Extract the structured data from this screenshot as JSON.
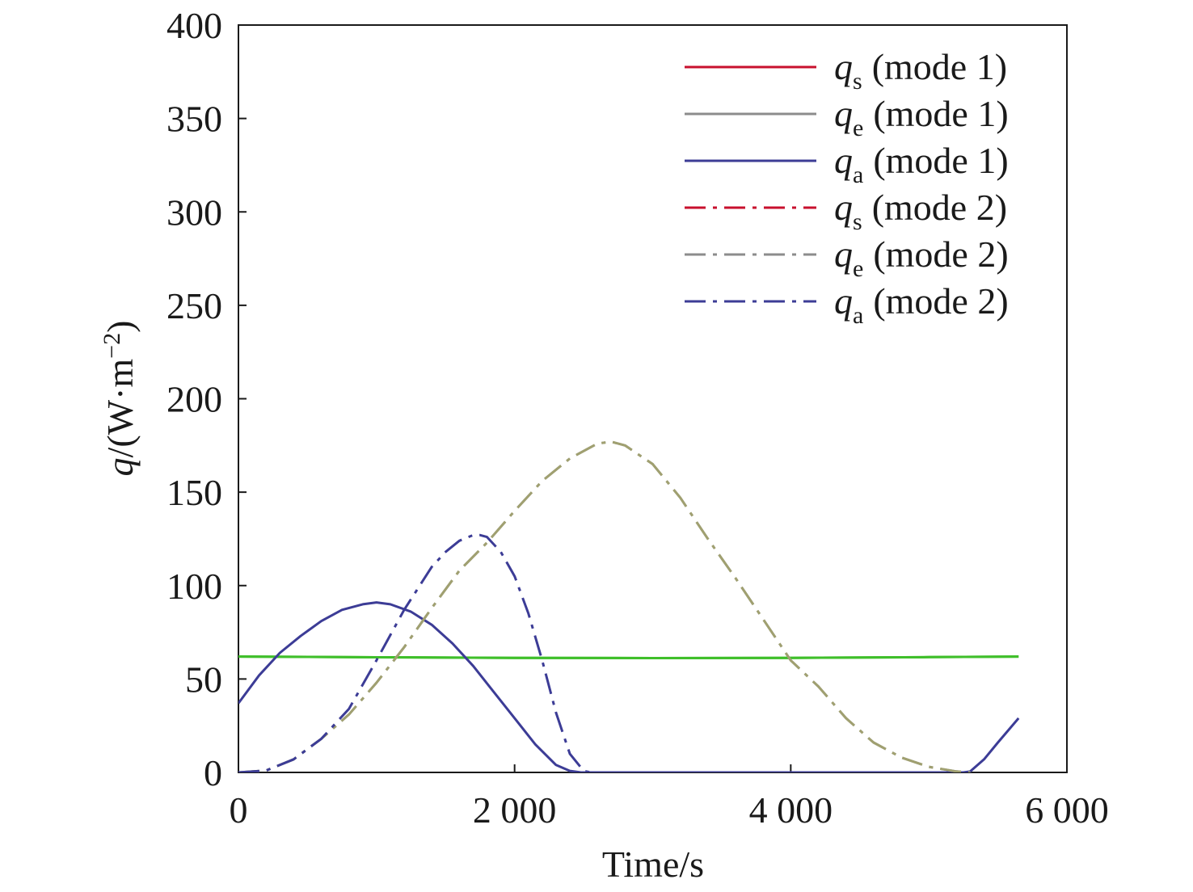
{
  "chart_data": {
    "type": "line",
    "xlabel": "Time/s",
    "ylabel_var": "q",
    "ylabel_unit_open": "/(W·m",
    "ylabel_unit_sup": "−2",
    "ylabel_unit_close": ")",
    "xlim": [
      0,
      6000
    ],
    "ylim": [
      0,
      400
    ],
    "xticks": [
      0,
      2000,
      4000,
      6000
    ],
    "xtick_labels": [
      "0",
      "2 000",
      "4 000",
      "6 000"
    ],
    "yticks": [
      0,
      50,
      100,
      150,
      200,
      250,
      300,
      350,
      400
    ],
    "ytick_labels": [
      "0",
      "50",
      "100",
      "150",
      "200",
      "250",
      "300",
      "350",
      "400"
    ],
    "grid": false,
    "legend_position": "top-right",
    "series": [
      {
        "name": "(mode 1)",
        "symbol": "q",
        "subscript": "s",
        "color": "#c8102e",
        "style": "solid",
        "x": [
          0,
          1000,
          2000,
          3000,
          4000,
          5000,
          5650
        ],
        "y": [
          62,
          61.6,
          61.3,
          61.2,
          61.3,
          61.7,
          62
        ]
      },
      {
        "name": "(mode 1)",
        "symbol": "q",
        "subscript": "e",
        "color": "#8c8c8c",
        "style": "solid",
        "x": [
          0,
          1000,
          2000,
          3000,
          4000,
          5000,
          5650
        ],
        "y": [
          62,
          61.6,
          61.3,
          61.2,
          61.3,
          61.7,
          62
        ]
      },
      {
        "name": "(mode 1)",
        "symbol": "q",
        "subscript": "a",
        "color": "#3c3c96",
        "style": "solid",
        "x": [
          0,
          150,
          300,
          450,
          600,
          750,
          900,
          1000,
          1100,
          1250,
          1400,
          1550,
          1700,
          1850,
          2000,
          2150,
          2300,
          2400,
          2480,
          2550,
          5250,
          5300,
          5400,
          5500,
          5650
        ],
        "y": [
          37,
          52,
          64,
          73,
          81,
          87,
          90,
          91,
          90,
          86,
          79,
          69,
          57,
          43,
          29,
          15,
          4,
          0.8,
          0,
          0,
          0,
          0.5,
          7,
          16,
          29
        ]
      },
      {
        "name": "(mode 2)",
        "symbol": "q",
        "subscript": "s",
        "color": "#c8102e",
        "style": "dashdot",
        "x": [
          0,
          200,
          400,
          600,
          800,
          1000,
          1200,
          1400,
          1600,
          1800,
          2000,
          2200,
          2400,
          2600,
          2700,
          2800,
          3000,
          3200,
          3400,
          3600,
          3800,
          4000,
          4200,
          4400,
          4600,
          4800,
          5000,
          5200,
          5300
        ],
        "y": [
          0,
          1,
          7,
          18,
          31,
          48,
          67,
          88,
          108,
          123,
          140,
          156,
          168,
          176,
          177,
          175,
          165,
          147,
          125,
          104,
          82,
          60,
          46,
          29,
          16,
          8,
          3,
          0.5,
          0
        ]
      },
      {
        "name": "(mode 2)",
        "symbol": "q",
        "subscript": "e",
        "color": "#8c8c8c",
        "style": "dashdot",
        "x": [
          0,
          200,
          400,
          600,
          800,
          1000,
          1200,
          1400,
          1600,
          1800,
          2000,
          2200,
          2400,
          2600,
          2700,
          2800,
          3000,
          3200,
          3400,
          3600,
          3800,
          4000,
          4200,
          4400,
          4600,
          4800,
          5000,
          5200,
          5300
        ],
        "y": [
          0,
          1,
          7,
          18,
          31,
          48,
          67,
          88,
          108,
          123,
          140,
          156,
          168,
          176,
          177,
          175,
          165,
          147,
          125,
          104,
          82,
          60,
          46,
          29,
          16,
          8,
          3,
          0.5,
          0
        ]
      },
      {
        "name": "(mode 2)",
        "symbol": "q",
        "subscript": "a",
        "color": "#3c3c96",
        "style": "dashdot",
        "x": [
          0,
          200,
          400,
          600,
          800,
          1000,
          1200,
          1400,
          1500,
          1600,
          1700,
          1750,
          1800,
          1900,
          2000,
          2100,
          2200,
          2300,
          2400,
          2500,
          2550
        ],
        "y": [
          0,
          1,
          7,
          18,
          34,
          60,
          87,
          110,
          118,
          124,
          127,
          127,
          126,
          118,
          105,
          85,
          60,
          32,
          10,
          0.8,
          0
        ]
      }
    ]
  }
}
